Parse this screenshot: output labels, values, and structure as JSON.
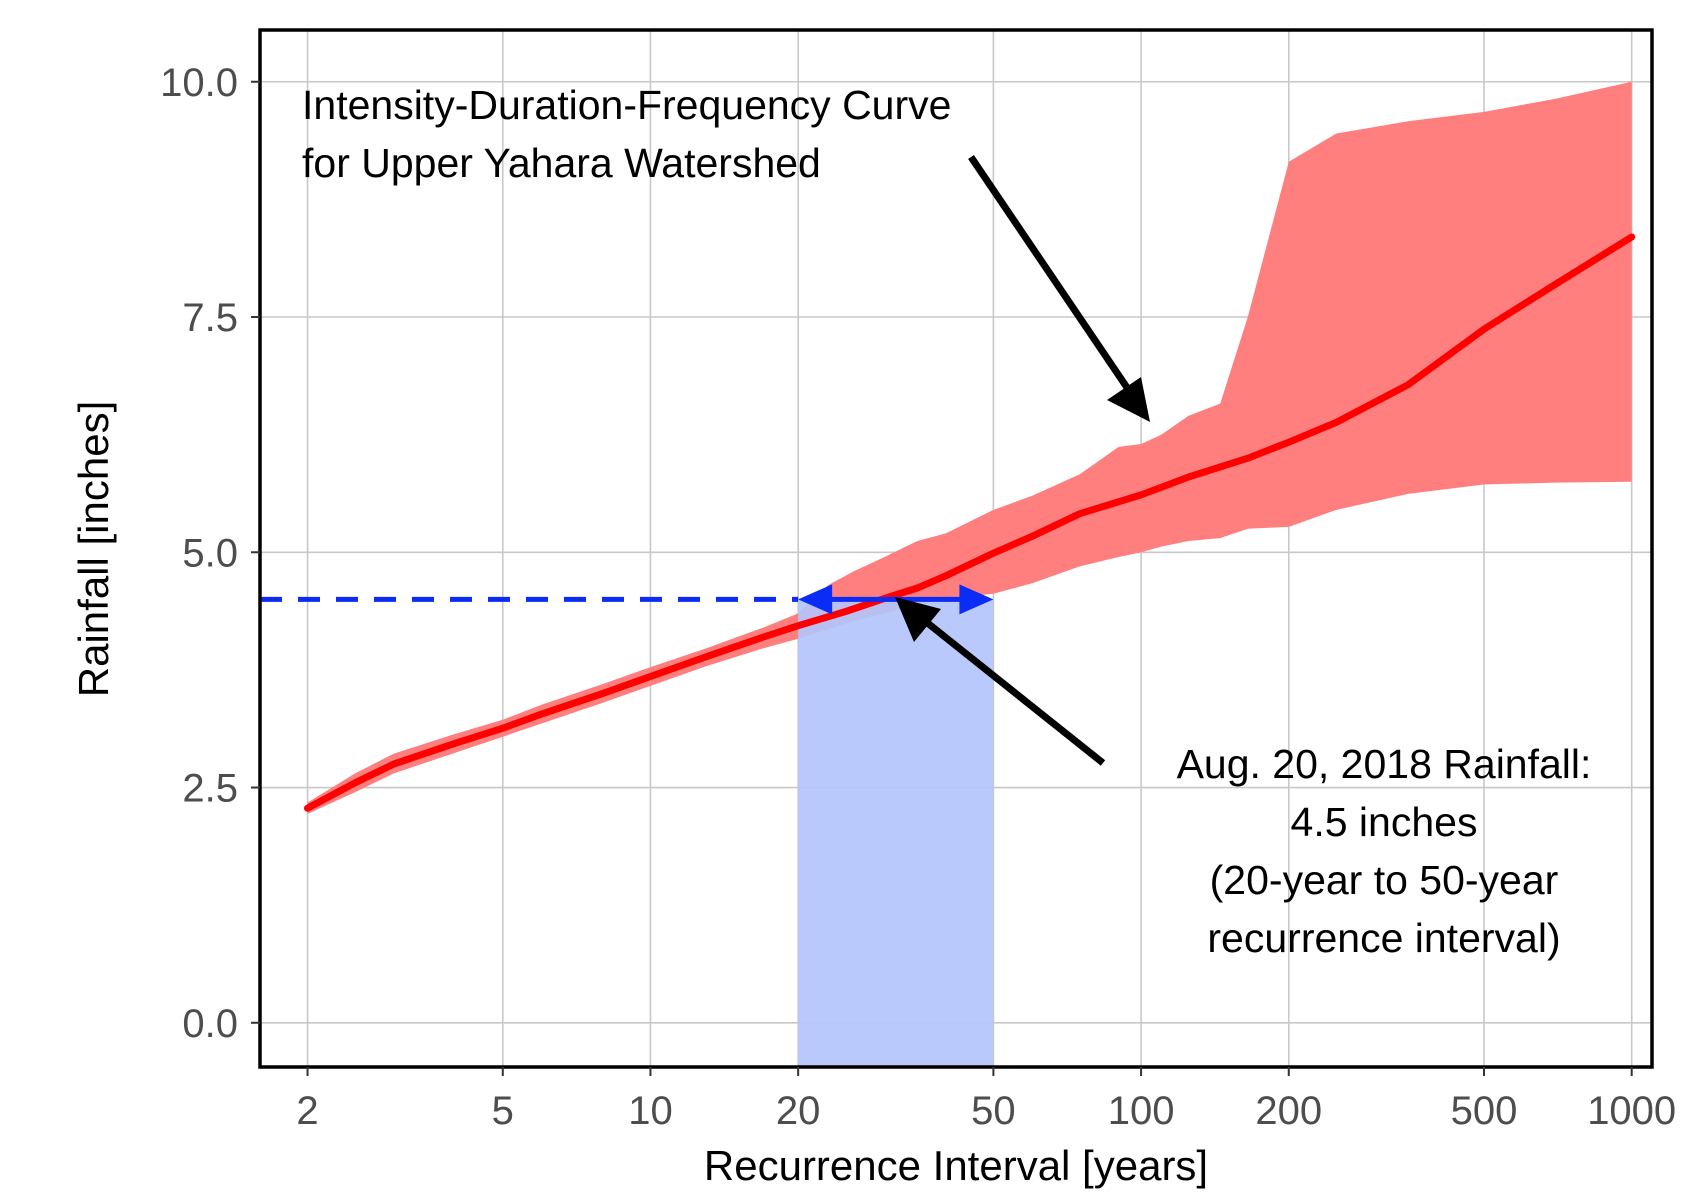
{
  "chart_data": {
    "type": "line",
    "xlabel": "Recurrence Interval [years]",
    "ylabel": "Rainfall [inches]",
    "x_scale": "log",
    "xlim": [
      1.6,
      1100
    ],
    "ylim": [
      -0.47,
      10.55
    ],
    "x_ticks": [
      2,
      5,
      10,
      20,
      50,
      100,
      200,
      500,
      1000
    ],
    "x_tick_labels": [
      "2",
      "5",
      "10",
      "20",
      "50",
      "100",
      "200",
      "500",
      "1000"
    ],
    "y_ticks": [
      0,
      2.5,
      5,
      7.5,
      10
    ],
    "y_tick_labels": [
      "0.0",
      "2.5",
      "5.0",
      "7.5",
      "10.0"
    ],
    "grid": true,
    "colors": {
      "line": "#ff0000",
      "band": "#ff7f7f",
      "highlight": "#b3c4fb",
      "event_line": "#0b2cf5",
      "arrow": "#000000"
    },
    "series": [
      {
        "x": [
          2,
          2.5,
          3,
          4,
          5,
          6,
          8,
          10,
          13,
          17,
          20,
          25,
          30,
          35,
          40,
          50,
          60,
          75,
          100,
          125,
          165,
          200,
          250,
          350,
          500,
          700,
          1000
        ],
        "values": [
          2.28,
          2.55,
          2.75,
          2.97,
          3.13,
          3.28,
          3.5,
          3.68,
          3.89,
          4.1,
          4.22,
          4.37,
          4.51,
          4.62,
          4.75,
          4.99,
          5.17,
          5.41,
          5.61,
          5.8,
          6.0,
          6.17,
          6.38,
          6.78,
          7.37,
          7.85,
          8.35
        ]
      }
    ],
    "confidence_band": {
      "x": [
        2,
        2.5,
        3,
        4,
        5,
        6,
        8,
        10,
        13,
        17,
        20,
        23,
        26,
        30,
        35,
        40,
        50,
        60,
        75,
        90,
        100,
        110,
        125,
        145,
        165,
        200,
        250,
        350,
        500,
        700,
        1000
      ],
      "upper": [
        2.34,
        2.65,
        2.86,
        3.07,
        3.22,
        3.38,
        3.6,
        3.78,
        3.98,
        4.2,
        4.35,
        4.65,
        4.8,
        4.95,
        5.12,
        5.2,
        5.45,
        5.6,
        5.83,
        6.12,
        6.15,
        6.25,
        6.45,
        6.58,
        7.5,
        9.15,
        9.45,
        9.58,
        9.68,
        9.82,
        10.0
      ],
      "lower": [
        2.22,
        2.45,
        2.65,
        2.87,
        3.04,
        3.18,
        3.4,
        3.58,
        3.79,
        3.98,
        4.08,
        4.18,
        4.27,
        4.35,
        4.45,
        4.51,
        4.56,
        4.67,
        4.85,
        4.95,
        5.0,
        5.06,
        5.12,
        5.15,
        5.25,
        5.27,
        5.45,
        5.62,
        5.72,
        5.74,
        5.75
      ]
    },
    "highlight_range": {
      "x_start": 20,
      "x_end": 50
    },
    "event": {
      "rainfall": 4.5
    },
    "annotations": [
      {
        "id": "curve",
        "lines": [
          "Intensity-Duration-Frequency Curve",
          "for Upper Yahara Watershed"
        ]
      },
      {
        "id": "event",
        "lines": [
          "Aug. 20, 2018 Rainfall:",
          "4.5 inches",
          "(20-year to 50-year",
          "recurrence interval)"
        ]
      }
    ]
  }
}
